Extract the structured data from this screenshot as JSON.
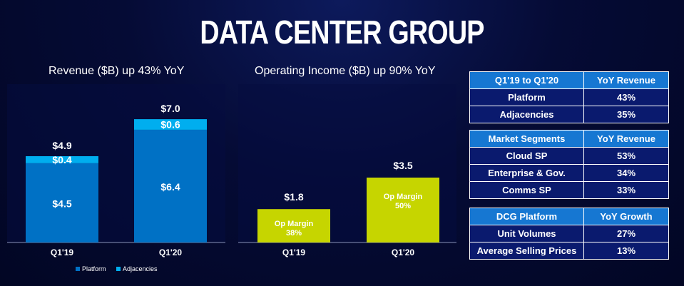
{
  "title": "DATA CENTER GROUP",
  "colors": {
    "platform": "#0071c5",
    "adjacencies": "#00aeef",
    "op_income": "#c6d500"
  },
  "chart_data": [
    {
      "type": "bar",
      "title": "Revenue ($B) up 43% YoY",
      "categories": [
        "Q1'19",
        "Q1'20"
      ],
      "series": [
        {
          "name": "Platform",
          "values": [
            4.5,
            6.4
          ],
          "labels": [
            "$4.5",
            "$6.4"
          ]
        },
        {
          "name": "Adjacencies",
          "values": [
            0.4,
            0.6
          ],
          "labels": [
            "$0.4",
            "$0.6"
          ]
        }
      ],
      "totals": [
        "$4.9",
        "$7.0"
      ],
      "stacked": true,
      "legend": "bottom",
      "ylim": [
        0,
        7.5
      ]
    },
    {
      "type": "bar",
      "title": "Operating Income ($B) up 90% YoY",
      "categories": [
        "Q1'19",
        "Q1'20"
      ],
      "series": [
        {
          "values": [
            1.8,
            3.5
          ],
          "labels": [
            "$1.8",
            "$3.5"
          ]
        }
      ],
      "inner_labels": [
        [
          "Op Margin",
          "38%"
        ],
        [
          "Op Margin",
          "50%"
        ]
      ],
      "ylim": [
        0,
        7.5
      ]
    }
  ],
  "tables": [
    {
      "headers": [
        "Q1'19 to Q1'20",
        "YoY Revenue"
      ],
      "rows": [
        [
          "Platform",
          "43%"
        ],
        [
          "Adjacencies",
          "35%"
        ]
      ]
    },
    {
      "headers": [
        "Market Segments",
        "YoY Revenue"
      ],
      "rows": [
        [
          "Cloud SP",
          "53%"
        ],
        [
          "Enterprise & Gov.",
          "34%"
        ],
        [
          "Comms SP",
          "33%"
        ]
      ]
    },
    {
      "headers": [
        "DCG Platform",
        "YoY Growth"
      ],
      "rows": [
        [
          "Unit Volumes",
          "27%"
        ],
        [
          "Average Selling Prices",
          "13%"
        ]
      ]
    }
  ]
}
